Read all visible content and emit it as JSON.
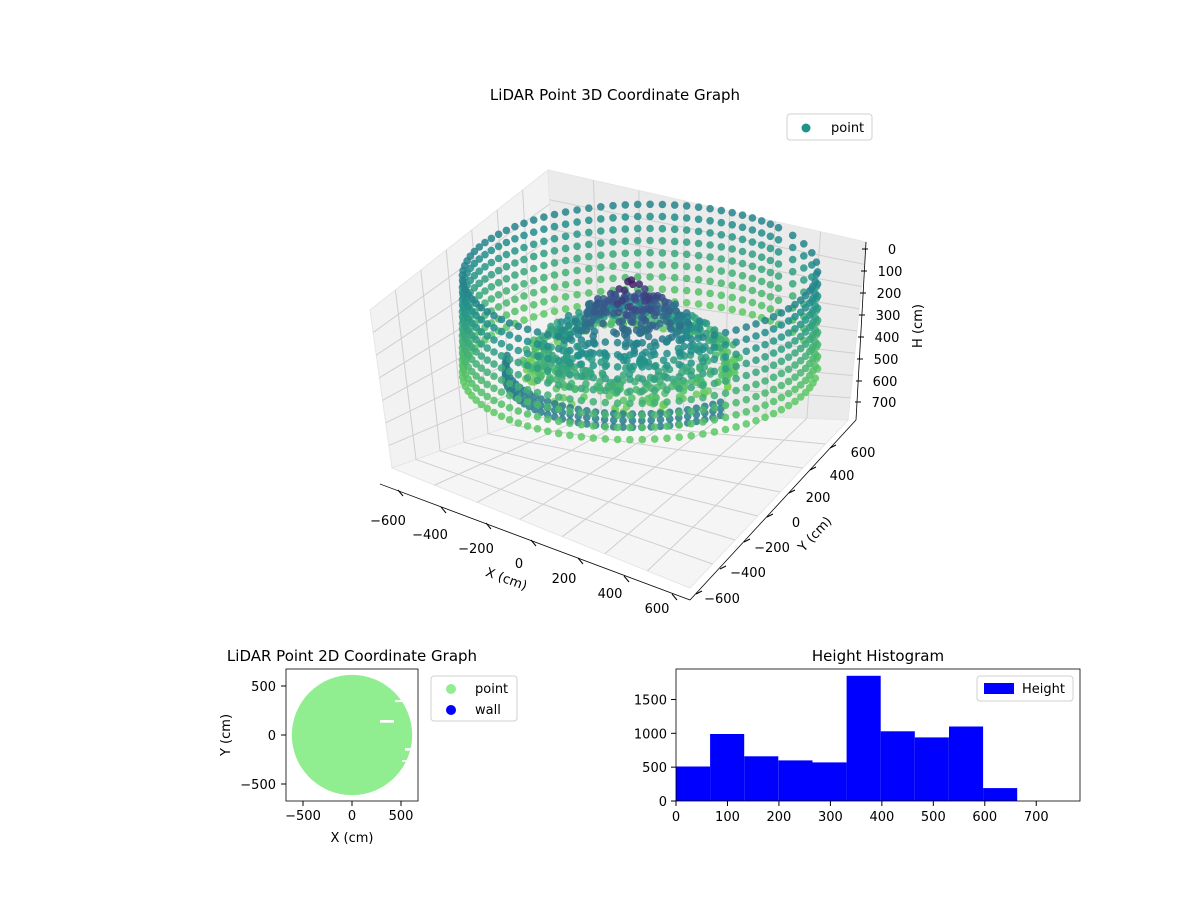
{
  "chart_data": [
    {
      "type": "scatter",
      "projection": "3d",
      "title": "LiDAR Point 3D Coordinate Graph",
      "xlabel": "X (cm)",
      "ylabel": "Y (cm)",
      "zlabel": "H (cm)",
      "x_ticks": [
        "−600",
        "−400",
        "−200",
        "0",
        "200",
        "400",
        "600"
      ],
      "y_ticks": [
        "−600",
        "−400",
        "−200",
        "0",
        "200",
        "400",
        "600"
      ],
      "z_ticks": [
        "0",
        "100",
        "200",
        "300",
        "400",
        "500",
        "600",
        "700"
      ],
      "xlim": [
        -650,
        650
      ],
      "ylim": [
        -650,
        650
      ],
      "zlim": [
        0,
        750
      ],
      "z_inverted": true,
      "colormap": "viridis",
      "legend": {
        "placement": "top-right",
        "entries": [
          {
            "label": "point",
            "color": "#21918c"
          }
        ]
      },
      "grid": true,
      "series": [
        {
          "name": "point",
          "description_points": [
            {
              "shape": "ring",
              "radius_cm": 620,
              "h_range": [
                100,
                600
              ]
            },
            {
              "shape": "floor-ring",
              "radius_cm": 420,
              "h": 600
            },
            {
              "shape": "interior-mound",
              "radius_cm": 380,
              "h_range": [
                150,
                720
              ]
            }
          ]
        }
      ]
    },
    {
      "type": "scatter",
      "title": "LiDAR Point 2D Coordinate Graph",
      "xlabel": "X (cm)",
      "ylabel": "Y (cm)",
      "x_ticks": [
        "−500",
        "0",
        "500"
      ],
      "y_ticks": [
        "500",
        "0",
        "−500"
      ],
      "xlim": [
        -680,
        680
      ],
      "ylim": [
        -680,
        680
      ],
      "legend": {
        "placement": "outside-right",
        "entries": [
          {
            "label": "point",
            "color": "#90ee90"
          },
          {
            "label": "wall",
            "color": "#0000ff"
          }
        ]
      },
      "series": [
        {
          "name": "point",
          "color": "#90ee90",
          "shape": "filled-disc",
          "radius_cm": 620
        },
        {
          "name": "wall",
          "color": "#0000ff"
        }
      ]
    },
    {
      "type": "bar",
      "title": "Height Histogram",
      "xlabel": "",
      "ylabel": "",
      "x_ticks": [
        "0",
        "100",
        "200",
        "300",
        "400",
        "500",
        "600",
        "700"
      ],
      "y_ticks": [
        "0",
        "500",
        "1000",
        "1500"
      ],
      "xlim": [
        0,
        785
      ],
      "ylim": [
        0,
        1950
      ],
      "legend": {
        "placement": "top-right",
        "entries": [
          {
            "label": "Height",
            "color": "#0000ff"
          }
        ]
      },
      "color": "#0000ff",
      "bin_edges": [
        0,
        66.3,
        132.6,
        198.9,
        265.2,
        331.5,
        397.8,
        464.1,
        530.4,
        596.7,
        663
      ],
      "series": [
        {
          "name": "Height",
          "values": [
            510,
            990,
            660,
            600,
            570,
            1850,
            1030,
            940,
            1100,
            190
          ]
        }
      ]
    }
  ]
}
